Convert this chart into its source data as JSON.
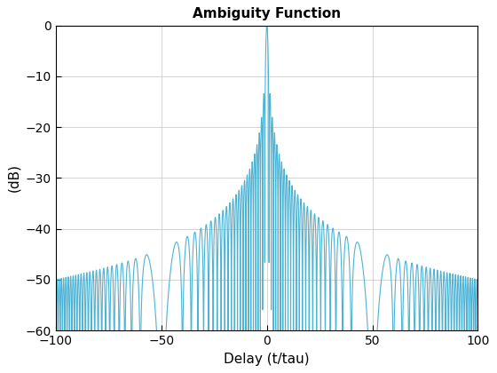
{
  "title": "Ambiguity Function",
  "xlabel": "Delay (t/tau)",
  "ylabel": "(dB)",
  "xlim": [
    -100,
    100
  ],
  "ylim": [
    -60,
    0
  ],
  "xticks": [
    -100,
    -50,
    0,
    50,
    100
  ],
  "yticks": [
    0,
    -10,
    -20,
    -30,
    -40,
    -50,
    -60
  ],
  "line_color": "#4db3d4",
  "line_width": 0.8,
  "background_color": "#ffffff",
  "grid_color": "#cccccc",
  "title_fontsize": 11,
  "label_fontsize": 11,
  "num_points": 20000,
  "N": 100,
  "n_sub": 10
}
